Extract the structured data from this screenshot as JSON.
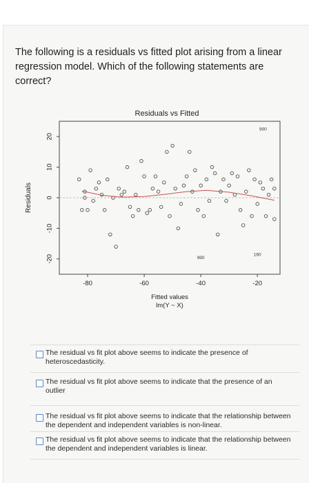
{
  "question": "The following is a residuals vs fitted plot arising from a linear regression model. Which of the following statements are correct?",
  "chart_data": {
    "type": "scatter",
    "title": "Residuals vs Fitted",
    "xlabel_line1": "Fitted values",
    "xlabel_line2": "lm(Y ~ X)",
    "ylabel": "Residuals",
    "xlim": [
      -90,
      -12
    ],
    "ylim": [
      -25,
      25
    ],
    "xticks": [
      -80,
      -60,
      -40,
      -20
    ],
    "yticks": [
      -20,
      -10,
      0,
      10,
      20
    ],
    "point_labels": [
      {
        "x": -18,
        "y": 22,
        "text": "900"
      },
      {
        "x": -20,
        "y": -19,
        "text": "160"
      },
      {
        "x": -40,
        "y": -20,
        "text": "990"
      }
    ],
    "points": [
      {
        "x": -82,
        "y": -4
      },
      {
        "x": -83,
        "y": 6
      },
      {
        "x": -81,
        "y": 0
      },
      {
        "x": -80,
        "y": -4
      },
      {
        "x": -81,
        "y": 2
      },
      {
        "x": -79,
        "y": 9
      },
      {
        "x": -78,
        "y": -1
      },
      {
        "x": -77,
        "y": 3
      },
      {
        "x": -76,
        "y": 5
      },
      {
        "x": -75,
        "y": 1
      },
      {
        "x": -74,
        "y": -4
      },
      {
        "x": -73,
        "y": 6
      },
      {
        "x": -72,
        "y": -12
      },
      {
        "x": -71,
        "y": 0
      },
      {
        "x": -70,
        "y": -16
      },
      {
        "x": -69,
        "y": 3
      },
      {
        "x": -68,
        "y": 1
      },
      {
        "x": -67,
        "y": 2
      },
      {
        "x": -66,
        "y": 10
      },
      {
        "x": -65,
        "y": -3
      },
      {
        "x": -64,
        "y": -6
      },
      {
        "x": -63,
        "y": 1
      },
      {
        "x": -62,
        "y": -4
      },
      {
        "x": -61,
        "y": 12
      },
      {
        "x": -60,
        "y": 7
      },
      {
        "x": -59,
        "y": -5
      },
      {
        "x": -58,
        "y": -4
      },
      {
        "x": -57,
        "y": 3
      },
      {
        "x": -56,
        "y": 7
      },
      {
        "x": -55,
        "y": 2
      },
      {
        "x": -54,
        "y": -3
      },
      {
        "x": -53,
        "y": 5
      },
      {
        "x": -52,
        "y": 15
      },
      {
        "x": -51,
        "y": -6
      },
      {
        "x": -50,
        "y": 17
      },
      {
        "x": -49,
        "y": 3
      },
      {
        "x": -48,
        "y": -10
      },
      {
        "x": -47,
        "y": -2
      },
      {
        "x": -46,
        "y": 4
      },
      {
        "x": -45,
        "y": 7
      },
      {
        "x": -44,
        "y": 15
      },
      {
        "x": -43,
        "y": 2
      },
      {
        "x": -42,
        "y": 9
      },
      {
        "x": -41,
        "y": -4
      },
      {
        "x": -40,
        "y": 4
      },
      {
        "x": -39,
        "y": -6
      },
      {
        "x": -38,
        "y": 6
      },
      {
        "x": -37,
        "y": -1
      },
      {
        "x": -36,
        "y": 10
      },
      {
        "x": -35,
        "y": 8
      },
      {
        "x": -34,
        "y": -12
      },
      {
        "x": -33,
        "y": 2
      },
      {
        "x": -32,
        "y": 6
      },
      {
        "x": -31,
        "y": -1
      },
      {
        "x": -30,
        "y": 4
      },
      {
        "x": -29,
        "y": 8
      },
      {
        "x": -28,
        "y": 1
      },
      {
        "x": -27,
        "y": 7
      },
      {
        "x": -26,
        "y": -4
      },
      {
        "x": -25,
        "y": -9
      },
      {
        "x": -24,
        "y": 2
      },
      {
        "x": -23,
        "y": 9
      },
      {
        "x": -22,
        "y": -6
      },
      {
        "x": -21,
        "y": 6
      },
      {
        "x": -20,
        "y": -2
      },
      {
        "x": -19,
        "y": 5
      },
      {
        "x": -18,
        "y": 3
      },
      {
        "x": -17,
        "y": -6
      },
      {
        "x": -16,
        "y": 1
      },
      {
        "x": -15,
        "y": 6
      },
      {
        "x": -14,
        "y": -7
      },
      {
        "x": -14,
        "y": 3
      }
    ],
    "smooth_line": [
      {
        "x": -82,
        "y": 2.2
      },
      {
        "x": -75,
        "y": 0.8
      },
      {
        "x": -68,
        "y": 0.2
      },
      {
        "x": -60,
        "y": 0.4
      },
      {
        "x": -52,
        "y": 1.2
      },
      {
        "x": -45,
        "y": 2.0
      },
      {
        "x": -38,
        "y": 2.4
      },
      {
        "x": -30,
        "y": 1.8
      },
      {
        "x": -22,
        "y": 0.6
      },
      {
        "x": -14,
        "y": -0.8
      }
    ],
    "colors": {
      "points": "#3a3a3a",
      "smooth": "#c85050",
      "zero_line": "#b0b0b0"
    }
  },
  "options": [
    {
      "text": "The residual vs fit plot above seems to indicate the presence of heteroscedasticity."
    },
    {
      "text": "The residual vs fit plot above seems to indicate that the presence of an outlier"
    },
    {
      "text": "The residual vs fit plot above seems to indicate that the relationship between the dependent and independent variables is non-linear."
    },
    {
      "text": "The residual vs fit plot above seems to indicate that the relationship between the dependent and independent variables is linear."
    }
  ]
}
